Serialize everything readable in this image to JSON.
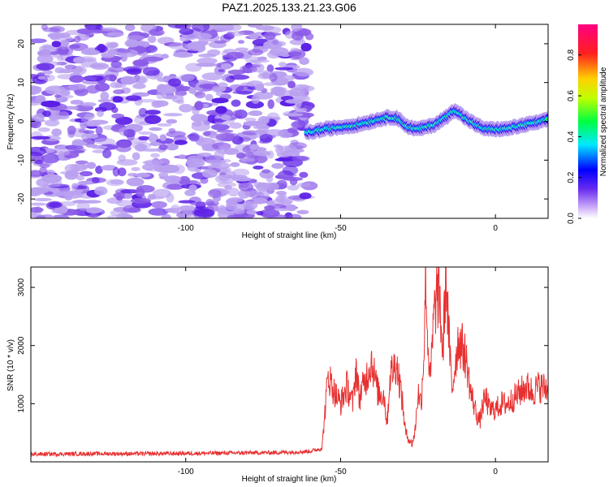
{
  "title": "PAZ1.2025.133.21.23.G06",
  "colors": {
    "spectrogram": [
      "#b9a0f0",
      "#8a5ae8",
      "#5a1ee6",
      "#0000ff",
      "#00e0ff",
      "#20e040",
      "#ffe000",
      "#ff1010"
    ],
    "snr_line": "#e83030"
  },
  "chart_data": [
    {
      "type": "heatmap",
      "xlabel": "Height of straight line (km)",
      "ylabel": "Frequency (Hz)",
      "xlim": [
        -150,
        17
      ],
      "ylim": [
        -25,
        25
      ],
      "xticks": [
        -100,
        -50,
        0
      ],
      "yticks": [
        -20,
        -10,
        0,
        10,
        20
      ],
      "noise_region_x": [
        -150,
        -60
      ],
      "signal_ridge": {
        "x": [
          -61,
          -55,
          -50,
          -45,
          -40,
          -35,
          -32,
          -28,
          -25,
          -20,
          -16,
          -13,
          -10,
          -6,
          -3,
          0,
          3,
          6,
          9,
          12,
          15,
          17
        ],
        "frequency": [
          -3,
          -2,
          -1.5,
          -1,
          0,
          1,
          1,
          -1.5,
          -2,
          -1,
          1,
          3,
          1,
          -1,
          -2,
          -2,
          -2,
          -1.5,
          -1,
          -0.5,
          0,
          0.5
        ]
      },
      "colorbar": {
        "label": "Normalized spectral amplitude",
        "range": [
          0,
          0.95
        ],
        "ticks": [
          0.0,
          0.2,
          0.4,
          0.6,
          0.8
        ]
      }
    },
    {
      "type": "line",
      "xlabel": "Height of straight line (km)",
      "ylabel": "SNR (10 * v/v)",
      "xlim": [
        -150,
        17
      ],
      "ylim": [
        0,
        3350
      ],
      "xticks": [
        -100,
        -50,
        0
      ],
      "yticks": [
        1000,
        2000,
        3000
      ],
      "series": [
        {
          "x": [
            -150,
            -130,
            -110,
            -90,
            -70,
            -60,
            -56,
            -55,
            -54,
            -52,
            -50,
            -48,
            -46,
            -45,
            -44,
            -42,
            -40,
            -38,
            -36,
            -35,
            -34,
            -32,
            -31,
            -30,
            -29,
            -28,
            -27,
            -26,
            -25,
            -24,
            -23,
            -22.5,
            -22,
            -21,
            -20,
            -19,
            -18,
            -17,
            -16,
            -15,
            -14,
            -13,
            -12,
            -11,
            -10,
            -9,
            -8,
            -6,
            -5,
            -4,
            -3,
            -2,
            0,
            2,
            4,
            6,
            8,
            10,
            12,
            14,
            17
          ],
          "values": [
            130,
            140,
            140,
            150,
            160,
            180,
            230,
            900,
            1500,
            1200,
            1000,
            1300,
            1000,
            1650,
            1100,
            1400,
            1750,
            1200,
            1150,
            650,
            1500,
            1700,
            1400,
            1000,
            500,
            400,
            300,
            500,
            1200,
            1000,
            2000,
            3350,
            2200,
            1400,
            2400,
            2900,
            2800,
            1800,
            3300,
            2100,
            1200,
            1700,
            2100,
            2000,
            1900,
            1600,
            1200,
            800,
            700,
            1000,
            1100,
            900,
            900,
            1000,
            1000,
            1100,
            1200,
            1300,
            1200,
            1300,
            1250
          ]
        }
      ]
    }
  ]
}
